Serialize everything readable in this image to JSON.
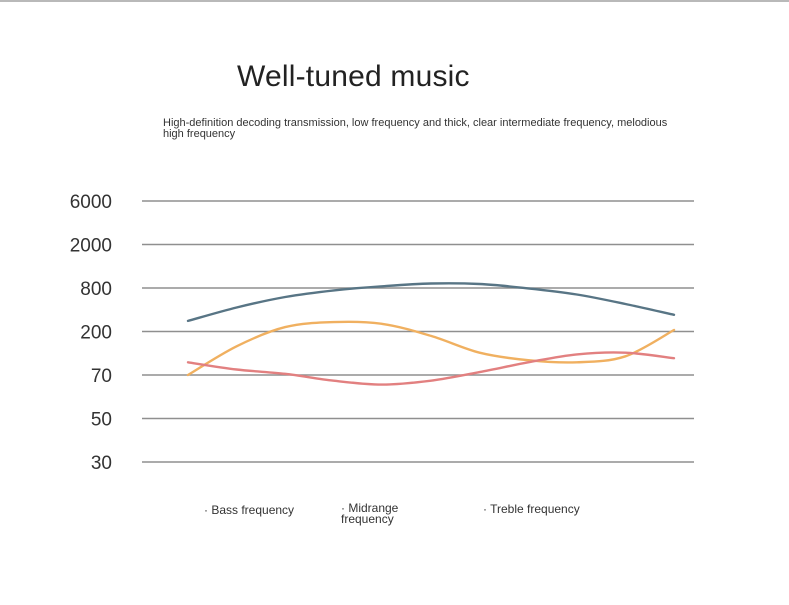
{
  "title": "Well-tuned music",
  "subtitle": "High-definition decoding transmission, low frequency and thick, clear intermediate frequency, melodious high frequency",
  "legend": {
    "bass": "· Bass frequency",
    "midrange": "· Midrange frequency",
    "treble": "· Treble frequency"
  },
  "chart_data": {
    "type": "line",
    "title": "Well-tuned music",
    "subtitle": "High-definition decoding transmission, low frequency and thick, clear intermediate frequency, melodious high frequency",
    "y_ticks": [
      "6000",
      "2000",
      "800",
      "200",
      "70",
      "50",
      "30"
    ],
    "x": [
      0,
      0.1,
      0.2,
      0.3,
      0.4,
      0.5,
      0.6,
      0.7,
      0.8,
      0.9,
      1.0
    ],
    "series": [
      {
        "name": "Bass frequency",
        "color": "#587585",
        "values": [
          280,
          430,
          600,
          740,
          830,
          880,
          870,
          790,
          650,
          480,
          340
        ]
      },
      {
        "name": "Midrange frequency",
        "color": "#f0b060",
        "values": [
          70,
          140,
          230,
          270,
          255,
          180,
          120,
          100,
          95,
          110,
          210
        ]
      },
      {
        "name": "Treble frequency",
        "color": "#e28080",
        "values": [
          95,
          80,
          72,
          67,
          65,
          67,
          75,
          95,
          115,
          120,
          105
        ]
      }
    ],
    "grid": true,
    "legend_position": "bottom"
  }
}
